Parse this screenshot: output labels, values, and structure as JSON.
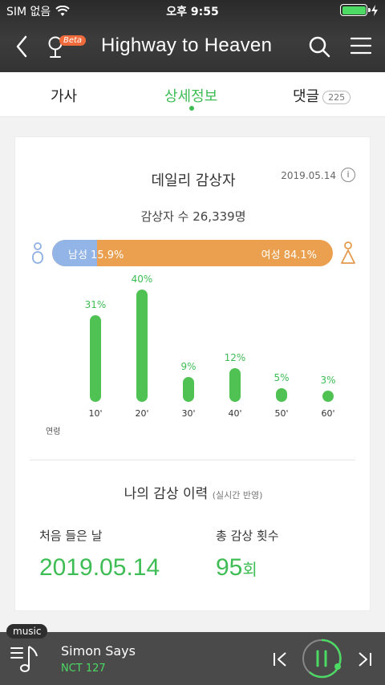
{
  "status_bar": {
    "carrier": "SIM 없음",
    "time": "오후 9:55"
  },
  "nav": {
    "title": "Highway to Heaven",
    "beta_badge": "Beta"
  },
  "tabs": [
    {
      "label": "가사"
    },
    {
      "label": "상세정보"
    },
    {
      "label": "댓글",
      "count": "225"
    }
  ],
  "daily": {
    "title": "데일리 감상자",
    "date": "2019.05.14",
    "listeners_text": "감상자 수 26,339명",
    "male_label": "남성 15.9%",
    "female_label": "여성 84.1%",
    "male_share": 0.159
  },
  "chart_data": {
    "type": "bar",
    "xlabel": "연령",
    "categories": [
      "10'",
      "20'",
      "30'",
      "40'",
      "50'",
      "60'"
    ],
    "values": [
      31,
      40,
      9,
      12,
      5,
      3
    ],
    "labels": [
      "31%",
      "40%",
      "9%",
      "12%",
      "5%",
      "3%"
    ],
    "ylim": [
      0,
      40
    ],
    "bar_color": "#50c253"
  },
  "history": {
    "title": "나의 감상 이력",
    "note": "(실시간 반영)",
    "first_label": "처음 들은 날",
    "first_value": "2019.05.14",
    "count_label": "총 감상 횟수",
    "count_value": "95",
    "count_unit": "회"
  },
  "player": {
    "tag": "music",
    "song": "Simon Says",
    "artist": "NCT 127",
    "accent": "#4cd964"
  },
  "icons": [
    "wifi-icon",
    "battery-icon",
    "back-icon",
    "mic-icon",
    "search-icon",
    "menu-icon",
    "info-icon",
    "male-icon",
    "female-icon",
    "playlist-icon",
    "prev-icon",
    "pause-icon",
    "next-icon"
  ]
}
